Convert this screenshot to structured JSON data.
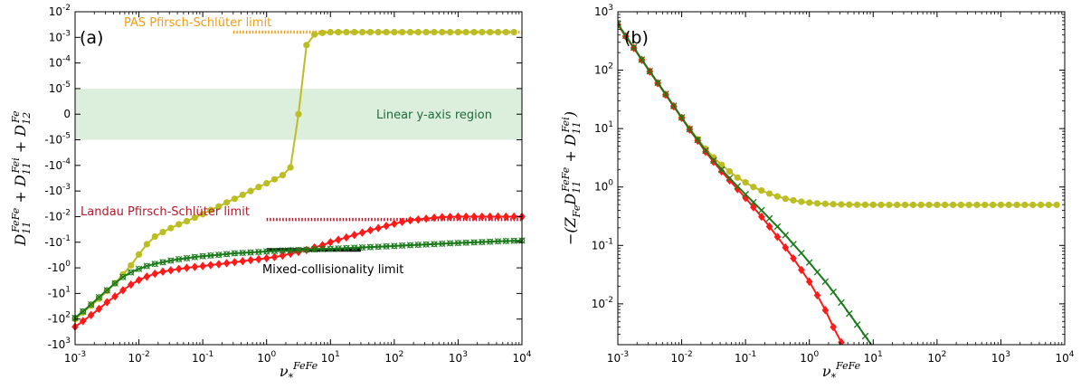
{
  "chart_data": [
    {
      "type": "line",
      "panel_label": "(a)",
      "xlabel": "ν*FeFe",
      "ylabel": "D11FeFe + D11Fei + D12Fe",
      "x_scale": "log",
      "y_scale": "symlog",
      "xlim": [
        0.001,
        10000
      ],
      "ylim": [
        -1000,
        0.01
      ],
      "x_ticks": [
        0.001,
        0.01,
        0.1,
        1,
        10,
        100,
        1000,
        10000
      ],
      "x_tick_labels": [
        {
          "base": "10",
          "exp": "-3"
        },
        {
          "base": "10",
          "exp": "-2"
        },
        {
          "base": "10",
          "exp": "-1"
        },
        {
          "base": "10",
          "exp": "0"
        },
        {
          "base": "10",
          "exp": "1"
        },
        {
          "base": "10",
          "exp": "2"
        },
        {
          "base": "10",
          "exp": "3"
        },
        {
          "base": "10",
          "exp": "4"
        }
      ],
      "y_tick_labels": [
        {
          "base": "10",
          "exp": "-2",
          "sign": ""
        },
        {
          "base": "10",
          "exp": "-3",
          "sign": ""
        },
        {
          "base": "10",
          "exp": "-4",
          "sign": ""
        },
        {
          "base": "10",
          "exp": "-5",
          "sign": ""
        },
        {
          "base": "0",
          "exp": "",
          "sign": ""
        },
        {
          "base": "10",
          "exp": "-5",
          "sign": "-"
        },
        {
          "base": "10",
          "exp": "-4",
          "sign": "-"
        },
        {
          "base": "10",
          "exp": "-3",
          "sign": "-"
        },
        {
          "base": "10",
          "exp": "-2",
          "sign": "-"
        },
        {
          "base": "10",
          "exp": "-1",
          "sign": "-"
        },
        {
          "base": "10",
          "exp": "0",
          "sign": "-"
        },
        {
          "base": "10",
          "exp": "1",
          "sign": "-"
        },
        {
          "base": "10",
          "exp": "2",
          "sign": "-"
        },
        {
          "base": "10",
          "exp": "3",
          "sign": "-"
        }
      ],
      "shaded_region": {
        "label": "Linear y-axis region",
        "y_from": -1e-05,
        "y_to": 1e-05,
        "color": "#dcefdc",
        "label_color": "#1d6b3b"
      },
      "annotations": [
        {
          "text": "PAS Pfirsch-Schlüter limit",
          "color": "#f39c12"
        },
        {
          "text": "Landau Pfirsch-Schlüter limit",
          "color": "#b2182b"
        },
        {
          "text": "Mixed-collisionality limit",
          "color": "#000000"
        }
      ],
      "series": [
        {
          "color": "#bcbd22",
          "marker": "circle",
          "marker_fill": "#bcbd22",
          "x": [
            0.001,
            0.00133,
            0.00178,
            0.00237,
            0.00316,
            0.00422,
            0.00562,
            0.0075,
            0.01,
            0.0133,
            0.0178,
            0.0237,
            0.0316,
            0.0422,
            0.0562,
            0.075,
            0.1,
            0.133,
            0.178,
            0.237,
            0.316,
            0.422,
            0.562,
            0.75,
            1.0,
            1.33,
            1.78,
            2.37,
            3.16,
            4.22,
            5.62,
            7.5,
            10,
            13.3,
            17.8,
            23.7,
            31.6,
            42.2,
            56.2,
            75,
            100,
            133,
            178,
            237,
            316,
            422,
            562,
            750,
            1000,
            1330,
            1780,
            2370,
            3160,
            4220,
            5620,
            7500
          ],
          "y": [
            -100,
            -55,
            -30,
            -16,
            -8,
            -4,
            -1.8,
            -0.8,
            -0.3,
            -0.12,
            -0.06,
            -0.04,
            -0.028,
            -0.02,
            -0.015,
            -0.011,
            -0.008,
            -0.0055,
            -0.004,
            -0.0028,
            -0.002,
            -0.0014,
            -0.001,
            -0.0007,
            -0.0005,
            -0.00035,
            -0.00024,
            -0.00012,
            0.0,
            0.0005,
            0.0013,
            0.0015,
            0.0016,
            0.0016,
            0.0016,
            0.0016,
            0.0016,
            0.0016,
            0.0016,
            0.0016,
            0.0016,
            0.0016,
            0.0016,
            0.0016,
            0.0016,
            0.0016,
            0.0016,
            0.0016,
            0.0016,
            0.0016,
            0.0016,
            0.0016,
            0.0016,
            0.0016,
            0.0016,
            0.0016
          ]
        },
        {
          "color": "#ff1a1a",
          "marker": "diamond",
          "marker_fill": "#ff1a1a",
          "x": [
            0.001,
            0.00133,
            0.00178,
            0.00237,
            0.00316,
            0.00422,
            0.00562,
            0.0075,
            0.01,
            0.0133,
            0.0178,
            0.0237,
            0.0316,
            0.0422,
            0.0562,
            0.075,
            0.1,
            0.133,
            0.178,
            0.237,
            0.316,
            0.422,
            0.562,
            0.75,
            1.0,
            1.33,
            1.78,
            2.37,
            3.16,
            4.22,
            5.62,
            7.5,
            10,
            13.3,
            17.8,
            23.7,
            31.6,
            42.2,
            56.2,
            75,
            100,
            133,
            178,
            237,
            316,
            422,
            562,
            750,
            1000,
            1330,
            1780,
            2370,
            3160,
            4220,
            5620,
            7500,
            10000
          ],
          "y": [
            -200,
            -120,
            -70,
            -40,
            -22,
            -13,
            -7.5,
            -4.5,
            -3.0,
            -2.2,
            -1.7,
            -1.4,
            -1.25,
            -1.1,
            -1.0,
            -0.92,
            -0.85,
            -0.78,
            -0.72,
            -0.66,
            -0.6,
            -0.55,
            -0.5,
            -0.46,
            -0.42,
            -0.38,
            -0.33,
            -0.28,
            -0.24,
            -0.2,
            -0.16,
            -0.13,
            -0.1,
            -0.08,
            -0.065,
            -0.052,
            -0.042,
            -0.034,
            -0.028,
            -0.023,
            -0.019,
            -0.016,
            -0.014,
            -0.013,
            -0.012,
            -0.011,
            -0.0105,
            -0.0102,
            -0.01,
            -0.01,
            -0.01,
            -0.01,
            -0.01,
            -0.01,
            -0.01,
            -0.01,
            -0.01
          ]
        },
        {
          "color": "#1a7a1a",
          "marker": "x-circle",
          "marker_fill": "none",
          "x": [
            0.001,
            0.00133,
            0.00178,
            0.00237,
            0.00316,
            0.00422,
            0.00562,
            0.0075,
            0.01,
            0.0133,
            0.0178,
            0.0237,
            0.0316,
            0.0422,
            0.0562,
            0.075,
            0.1,
            0.133,
            0.178,
            0.237,
            0.316,
            0.422,
            0.562,
            0.75,
            1.0,
            1.33,
            1.78,
            2.37,
            3.16,
            4.22,
            5.62,
            7.5,
            10,
            13.3,
            17.8,
            23.7,
            31.6,
            42.2,
            56.2,
            75,
            100,
            133,
            178,
            237,
            316,
            422,
            562,
            750,
            1000,
            1330,
            1780,
            2370,
            3160,
            4220,
            5620,
            7500,
            10000
          ],
          "y": [
            -90,
            -50,
            -27,
            -14,
            -7.5,
            -4,
            -2.3,
            -1.5,
            -1.1,
            -0.85,
            -0.7,
            -0.6,
            -0.52,
            -0.46,
            -0.42,
            -0.38,
            -0.35,
            -0.33,
            -0.31,
            -0.29,
            -0.27,
            -0.26,
            -0.25,
            -0.24,
            -0.23,
            -0.22,
            -0.21,
            -0.205,
            -0.2,
            -0.195,
            -0.19,
            -0.185,
            -0.18,
            -0.175,
            -0.17,
            -0.165,
            -0.16,
            -0.155,
            -0.15,
            -0.145,
            -0.14,
            -0.135,
            -0.13,
            -0.126,
            -0.122,
            -0.118,
            -0.114,
            -0.11,
            -0.107,
            -0.104,
            -0.101,
            -0.098,
            -0.095,
            -0.092,
            -0.09,
            -0.088,
            -0.086
          ]
        }
      ],
      "limit_lines": [
        {
          "name": "PAS Pfirsch-Schlüter limit",
          "color": "#f39c12",
          "x_from": 0.3,
          "x_to": 10000,
          "y": 0.0016,
          "style": "dotted"
        },
        {
          "name": "Landau Pfirsch-Schlüter limit",
          "color": "#b2182b",
          "x_from": 1,
          "x_to": 10000,
          "y": -0.013,
          "style": "dotted"
        },
        {
          "name": "Mixed-collisionality limit",
          "color": "#000000",
          "x_from": 1,
          "x_to": 30,
          "y": -0.2,
          "style": "solid"
        }
      ]
    },
    {
      "type": "line",
      "panel_label": "(b)",
      "xlabel": "ν*FeFe",
      "ylabel": "-(ZFe D11FeFe + D11Fei)",
      "x_scale": "log",
      "y_scale": "log",
      "xlim": [
        0.001,
        10000
      ],
      "ylim": [
        0.002,
        1000
      ],
      "x_ticks": [
        0.001,
        0.01,
        0.1,
        1,
        10,
        100,
        1000,
        10000
      ],
      "x_tick_labels": [
        {
          "base": "10",
          "exp": "-3"
        },
        {
          "base": "10",
          "exp": "-2"
        },
        {
          "base": "10",
          "exp": "-1"
        },
        {
          "base": "10",
          "exp": "0"
        },
        {
          "base": "10",
          "exp": "1"
        },
        {
          "base": "10",
          "exp": "2"
        },
        {
          "base": "10",
          "exp": "3"
        },
        {
          "base": "10",
          "exp": "4"
        }
      ],
      "y_ticks": [
        0.01,
        0.1,
        1,
        10,
        100,
        1000
      ],
      "y_tick_labels": [
        {
          "base": "10",
          "exp": "-2"
        },
        {
          "base": "10",
          "exp": "-1"
        },
        {
          "base": "10",
          "exp": "0"
        },
        {
          "base": "10",
          "exp": "1"
        },
        {
          "base": "10",
          "exp": "2"
        },
        {
          "base": "10",
          "exp": "3"
        }
      ],
      "series": [
        {
          "color": "#bcbd22",
          "marker": "circle",
          "x": [
            0.001,
            0.00133,
            0.00178,
            0.00237,
            0.00316,
            0.00422,
            0.00562,
            0.0075,
            0.01,
            0.0133,
            0.0178,
            0.0237,
            0.0316,
            0.0422,
            0.0562,
            0.075,
            0.1,
            0.133,
            0.178,
            0.237,
            0.316,
            0.422,
            0.562,
            0.75,
            1.0,
            1.33,
            1.78,
            2.37,
            3.16,
            4.22,
            5.62,
            7.5,
            10,
            13.3,
            17.8,
            23.7,
            31.6,
            42.2,
            56.2,
            75,
            100,
            133,
            178,
            237,
            316,
            422,
            562,
            750,
            1000,
            1330,
            1780,
            2370,
            3160,
            4220,
            5620,
            7500
          ],
          "y": [
            600,
            380,
            240,
            150,
            95,
            60,
            38,
            24,
            15.5,
            10,
            6.6,
            4.5,
            3.2,
            2.4,
            1.85,
            1.45,
            1.2,
            1.0,
            0.87,
            0.77,
            0.69,
            0.63,
            0.59,
            0.56,
            0.54,
            0.525,
            0.515,
            0.508,
            0.503,
            0.5,
            0.498,
            0.497,
            0.496,
            0.495,
            0.495,
            0.495,
            0.495,
            0.495,
            0.495,
            0.495,
            0.495,
            0.495,
            0.495,
            0.495,
            0.495,
            0.495,
            0.495,
            0.495,
            0.495,
            0.495,
            0.495,
            0.495,
            0.495,
            0.495,
            0.495,
            0.495
          ]
        },
        {
          "color": "#ff1a1a",
          "marker": "diamond",
          "x": [
            0.001,
            0.00133,
            0.00178,
            0.00237,
            0.00316,
            0.00422,
            0.00562,
            0.0075,
            0.01,
            0.0133,
            0.0178,
            0.0237,
            0.0316,
            0.0422,
            0.0562,
            0.075,
            0.1,
            0.133,
            0.178,
            0.237,
            0.316,
            0.422,
            0.562,
            0.75,
            1.0,
            1.33,
            1.78,
            2.37,
            3.16
          ],
          "y": [
            600,
            380,
            240,
            150,
            95,
            60,
            38,
            24,
            15.2,
            9.6,
            6.2,
            4.0,
            2.7,
            1.85,
            1.3,
            0.92,
            0.65,
            0.45,
            0.31,
            0.21,
            0.14,
            0.092,
            0.06,
            0.038,
            0.024,
            0.014,
            0.0078,
            0.004,
            0.0022
          ]
        },
        {
          "color": "#1a7a1a",
          "marker": "x",
          "x": [
            0.001,
            0.00133,
            0.00178,
            0.00237,
            0.00316,
            0.00422,
            0.00562,
            0.0075,
            0.01,
            0.0133,
            0.0178,
            0.0237,
            0.0316,
            0.0422,
            0.0562,
            0.075,
            0.1,
            0.133,
            0.178,
            0.237,
            0.316,
            0.422,
            0.562,
            0.75,
            1.0,
            1.33,
            1.78,
            2.37,
            3.16,
            4.22,
            5.62,
            7.5,
            10
          ],
          "y": [
            620,
            390,
            245,
            152,
            96,
            61,
            39,
            24.5,
            15.5,
            9.8,
            6.4,
            4.2,
            2.85,
            1.98,
            1.42,
            1.03,
            0.75,
            0.55,
            0.4,
            0.29,
            0.21,
            0.15,
            0.105,
            0.074,
            0.051,
            0.035,
            0.024,
            0.016,
            0.0105,
            0.0068,
            0.0044,
            0.0028,
            0.0018
          ]
        }
      ]
    }
  ]
}
